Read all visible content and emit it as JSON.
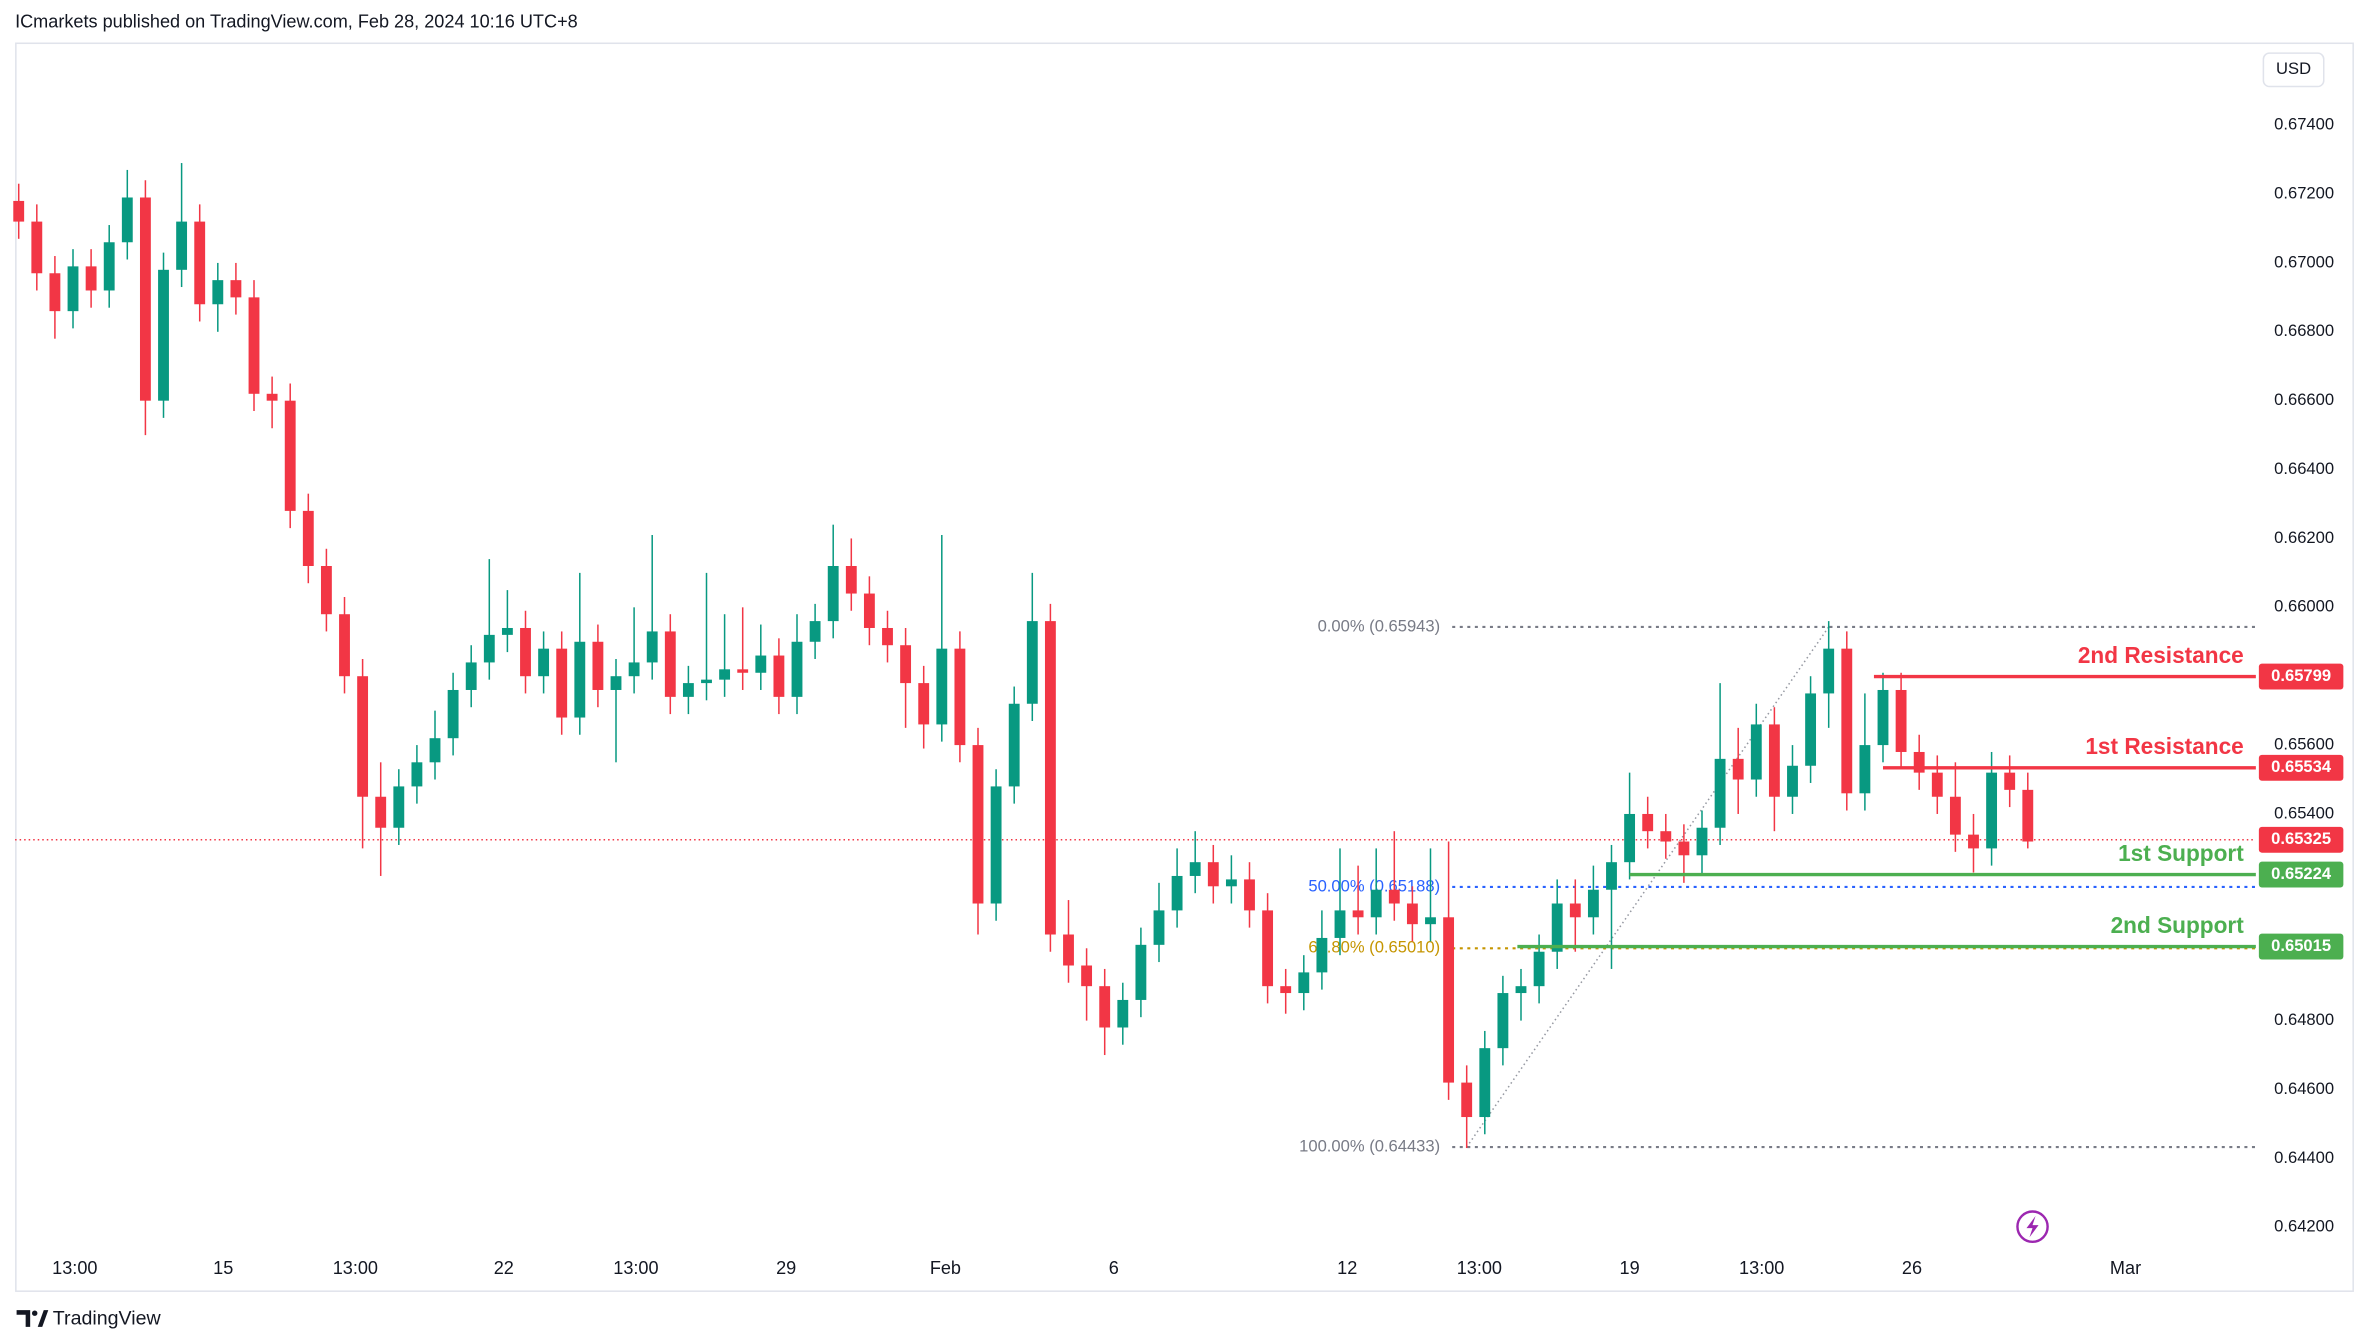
{
  "chart_data": {
    "type": "candlestick",
    "title": "ICmarkets published on TradingView.com, Feb 28, 2024 10:16 UTC+8",
    "currency": "USD",
    "brand": "TradingView",
    "up_color": "#089981",
    "down_color": "#f23645",
    "grid": false,
    "x": [
      0,
      1,
      2,
      3,
      4,
      5,
      6,
      7,
      8,
      9,
      10,
      11,
      12,
      13,
      14,
      15,
      16,
      17,
      18,
      19,
      20,
      21,
      22,
      23,
      24,
      25,
      26,
      27,
      28,
      29,
      30,
      31,
      32,
      33,
      34,
      35,
      36,
      37,
      38,
      39,
      40,
      41,
      42,
      43,
      44,
      45,
      46,
      47,
      48,
      49,
      50,
      51,
      52,
      53,
      54,
      55,
      56,
      57,
      58,
      59,
      60,
      61,
      62,
      63,
      64,
      65,
      66,
      67,
      68,
      69,
      70,
      71,
      72,
      73,
      74,
      75,
      76,
      77,
      78,
      79,
      80,
      81,
      82,
      83,
      84,
      85,
      86,
      87,
      88,
      89,
      90,
      91,
      92,
      93,
      94,
      95,
      96,
      97,
      98,
      99,
      100,
      101,
      102,
      103,
      104,
      105,
      106,
      107,
      108,
      109,
      110,
      111
    ],
    "open": [
      0.6718,
      0.6712,
      0.6697,
      0.6686,
      0.6699,
      0.6692,
      0.6706,
      0.6719,
      0.666,
      0.6698,
      0.6712,
      0.6688,
      0.6695,
      0.669,
      0.6662,
      0.666,
      0.6628,
      0.6612,
      0.6598,
      0.658,
      0.6545,
      0.6536,
      0.6548,
      0.6555,
      0.6562,
      0.6576,
      0.6584,
      0.6592,
      0.6594,
      0.658,
      0.6588,
      0.6568,
      0.659,
      0.6576,
      0.658,
      0.6584,
      0.6593,
      0.6574,
      0.6578,
      0.6579,
      0.6582,
      0.6581,
      0.6586,
      0.6574,
      0.659,
      0.6596,
      0.6612,
      0.6604,
      0.6594,
      0.6589,
      0.6578,
      0.6566,
      0.6588,
      0.656,
      0.6514,
      0.6548,
      0.6572,
      0.6596,
      0.6505,
      0.6496,
      0.649,
      0.6478,
      0.6486,
      0.6502,
      0.6512,
      0.6522,
      0.6526,
      0.6519,
      0.6521,
      0.6512,
      0.649,
      0.6488,
      0.6494,
      0.6504,
      0.6512,
      0.651,
      0.6518,
      0.6514,
      0.6508,
      0.651,
      0.6462,
      0.6452,
      0.6472,
      0.6488,
      0.649,
      0.65,
      0.6514,
      0.651,
      0.6518,
      0.6526,
      0.654,
      0.6535,
      0.6532,
      0.6528,
      0.6536,
      0.6556,
      0.655,
      0.6566,
      0.6545,
      0.6554,
      0.6575,
      0.6588,
      0.6546,
      0.656,
      0.6576,
      0.6558,
      0.6552,
      0.6545,
      0.6534,
      0.653,
      0.6552,
      0.6547
    ],
    "high": [
      0.6723,
      0.6717,
      0.6702,
      0.6704,
      0.6704,
      0.6711,
      0.6727,
      0.6724,
      0.6703,
      0.6729,
      0.6717,
      0.67,
      0.67,
      0.6695,
      0.6667,
      0.6665,
      0.6633,
      0.6617,
      0.6603,
      0.6585,
      0.6555,
      0.6553,
      0.656,
      0.657,
      0.6581,
      0.6589,
      0.6614,
      0.6605,
      0.6599,
      0.6593,
      0.6593,
      0.661,
      0.6595,
      0.6585,
      0.66,
      0.6621,
      0.6598,
      0.6583,
      0.661,
      0.6598,
      0.66,
      0.6595,
      0.6591,
      0.6598,
      0.6601,
      0.6624,
      0.662,
      0.6609,
      0.6599,
      0.6594,
      0.6583,
      0.6621,
      0.6593,
      0.6565,
      0.6553,
      0.6577,
      0.661,
      0.6601,
      0.6515,
      0.6501,
      0.6495,
      0.6491,
      0.6507,
      0.652,
      0.653,
      0.6535,
      0.6531,
      0.6528,
      0.6526,
      0.6517,
      0.6495,
      0.6499,
      0.6512,
      0.653,
      0.6525,
      0.653,
      0.6535,
      0.6519,
      0.653,
      0.6532,
      0.6467,
      0.6477,
      0.6493,
      0.6495,
      0.6505,
      0.6521,
      0.6521,
      0.6525,
      0.6531,
      0.6552,
      0.6545,
      0.654,
      0.6537,
      0.6541,
      0.6578,
      0.6565,
      0.6572,
      0.6571,
      0.656,
      0.658,
      0.6596,
      0.6593,
      0.6575,
      0.6581,
      0.6581,
      0.6563,
      0.6557,
      0.6555,
      0.654,
      0.6558,
      0.6557,
      0.6552
    ],
    "low": [
      0.6707,
      0.6692,
      0.6678,
      0.6681,
      0.6687,
      0.6687,
      0.6701,
      0.665,
      0.6655,
      0.6693,
      0.6683,
      0.668,
      0.6685,
      0.6657,
      0.6652,
      0.6623,
      0.6607,
      0.6593,
      0.6575,
      0.653,
      0.6522,
      0.6531,
      0.6543,
      0.655,
      0.6557,
      0.6571,
      0.6579,
      0.6587,
      0.6575,
      0.6575,
      0.6563,
      0.6563,
      0.6571,
      0.6555,
      0.6575,
      0.6579,
      0.6569,
      0.6569,
      0.6573,
      0.6574,
      0.6576,
      0.6576,
      0.6569,
      0.6569,
      0.6585,
      0.6591,
      0.6599,
      0.6589,
      0.6584,
      0.6565,
      0.6559,
      0.6561,
      0.6555,
      0.6505,
      0.6509,
      0.6543,
      0.6567,
      0.65,
      0.6491,
      0.648,
      0.647,
      0.6473,
      0.6481,
      0.6497,
      0.6507,
      0.6517,
      0.6514,
      0.6514,
      0.6507,
      0.6485,
      0.6482,
      0.6483,
      0.6489,
      0.6499,
      0.6505,
      0.6505,
      0.6509,
      0.6503,
      0.6503,
      0.6457,
      0.6443,
      0.6447,
      0.6467,
      0.648,
      0.6485,
      0.6495,
      0.65,
      0.6505,
      0.6495,
      0.6521,
      0.653,
      0.6527,
      0.652,
      0.6522,
      0.6531,
      0.654,
      0.6545,
      0.6535,
      0.654,
      0.6549,
      0.6565,
      0.6541,
      0.6541,
      0.6555,
      0.6553,
      0.6547,
      0.654,
      0.6529,
      0.6523,
      0.6525,
      0.6542,
      0.653
    ],
    "close": [
      0.6712,
      0.6697,
      0.6686,
      0.6699,
      0.6692,
      0.6706,
      0.6719,
      0.666,
      0.6698,
      0.6712,
      0.6688,
      0.6695,
      0.669,
      0.6662,
      0.666,
      0.6628,
      0.6612,
      0.6598,
      0.658,
      0.6545,
      0.6536,
      0.6548,
      0.6555,
      0.6562,
      0.6576,
      0.6584,
      0.6592,
      0.6594,
      0.658,
      0.6588,
      0.6568,
      0.659,
      0.6576,
      0.658,
      0.6584,
      0.6593,
      0.6574,
      0.6578,
      0.6579,
      0.6582,
      0.6581,
      0.6586,
      0.6574,
      0.659,
      0.6596,
      0.6612,
      0.6604,
      0.6594,
      0.6589,
      0.6578,
      0.6566,
      0.6588,
      0.656,
      0.6514,
      0.6548,
      0.6572,
      0.6596,
      0.6505,
      0.6496,
      0.649,
      0.6478,
      0.6486,
      0.6502,
      0.6512,
      0.6522,
      0.6526,
      0.6519,
      0.6521,
      0.6512,
      0.649,
      0.6488,
      0.6494,
      0.6504,
      0.6512,
      0.651,
      0.6518,
      0.6514,
      0.6508,
      0.651,
      0.6462,
      0.6452,
      0.6472,
      0.6488,
      0.649,
      0.65,
      0.6514,
      0.651,
      0.6518,
      0.6526,
      0.654,
      0.6535,
      0.6532,
      0.6528,
      0.6536,
      0.6556,
      0.655,
      0.6566,
      0.6545,
      0.6554,
      0.6575,
      0.6588,
      0.6546,
      0.656,
      0.6576,
      0.6558,
      0.6552,
      0.6545,
      0.6534,
      0.653,
      0.6552,
      0.6547,
      0.6532
    ],
    "xlim": [
      -0.2,
      123.6
    ],
    "xticks": [
      {
        "value": 3.1,
        "label": "13:00"
      },
      {
        "value": 11.3,
        "label": "15"
      },
      {
        "value": 18.6,
        "label": "13:00"
      },
      {
        "value": 26.8,
        "label": "22"
      },
      {
        "value": 34.1,
        "label": "13:00"
      },
      {
        "value": 42.4,
        "label": "29"
      },
      {
        "value": 51.2,
        "label": "Feb"
      },
      {
        "value": 60.5,
        "label": "6"
      },
      {
        "value": 73.4,
        "label": "12"
      },
      {
        "value": 80.7,
        "label": "13:00"
      },
      {
        "value": 89,
        "label": "19"
      },
      {
        "value": 96.3,
        "label": "13:00"
      },
      {
        "value": 104.6,
        "label": "26"
      },
      {
        "value": 116.4,
        "label": "Mar"
      }
    ],
    "ylim": [
      0.6414,
      0.6764
    ],
    "yticks": [
      {
        "value": 0.674,
        "label": "0.67400"
      },
      {
        "value": 0.672,
        "label": "0.67200"
      },
      {
        "value": 0.67,
        "label": "0.67000"
      },
      {
        "value": 0.668,
        "label": "0.66800"
      },
      {
        "value": 0.666,
        "label": "0.66600"
      },
      {
        "value": 0.664,
        "label": "0.66400"
      },
      {
        "value": 0.662,
        "label": "0.66200"
      },
      {
        "value": 0.66,
        "label": "0.66000"
      },
      {
        "value": 0.658,
        "label": "0.65800"
      },
      {
        "value": 0.656,
        "label": "0.65600"
      },
      {
        "value": 0.654,
        "label": "0.65400"
      },
      {
        "value": 0.652,
        "label": "0.65200"
      },
      {
        "value": 0.65,
        "label": "0.65000"
      },
      {
        "value": 0.648,
        "label": "0.64800"
      },
      {
        "value": 0.646,
        "label": "0.64600"
      },
      {
        "value": 0.644,
        "label": "0.64400"
      },
      {
        "value": 0.642,
        "label": "0.64200"
      }
    ],
    "last_price": {
      "value": 0.65325,
      "label": "0.65325",
      "color": "#f23645"
    },
    "levels": [
      {
        "name": "2nd Resistance",
        "value": 0.65799,
        "label": "0.65799",
        "color": "#f23645",
        "start": 102.5
      },
      {
        "name": "1st Resistance",
        "value": 0.65534,
        "label": "0.65534",
        "color": "#f23645",
        "start": 103
      },
      {
        "name": "1st Support",
        "value": 0.65224,
        "label": "0.65224",
        "color": "#4caf50",
        "start": 89
      },
      {
        "name": "2nd Support",
        "value": 0.65015,
        "label": "0.65015",
        "color": "#4caf50",
        "start": 82.8
      }
    ],
    "fibonacci": {
      "from_x": 80,
      "to_x": 100,
      "start": 79.2,
      "levels": [
        {
          "value": 0.65943,
          "label": "0.00% (0.65943)",
          "color": "#787b86"
        },
        {
          "value": 0.65188,
          "label": "50.00% (0.65188)",
          "color": "#2962ff"
        },
        {
          "value": 0.6501,
          "label": "61.80% (0.65010)",
          "color": "#c59500"
        },
        {
          "value": 0.64433,
          "label": "100.00% (0.64433)",
          "color": "#787b86"
        }
      ]
    }
  }
}
